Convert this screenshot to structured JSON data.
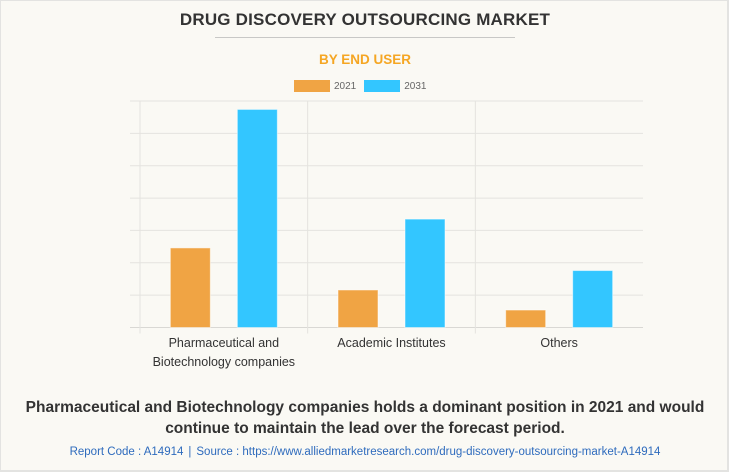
{
  "header": {
    "title": "DRUG DISCOVERY OUTSOURCING MARKET",
    "subtitle": "BY END USER"
  },
  "colors": {
    "subtitle": "#f5a623",
    "series_2021": "#f0a444",
    "series_2031": "#33c6ff",
    "gridline": "#e4e3df",
    "source_link": "#2e6bbd"
  },
  "chart_data": {
    "type": "bar",
    "title": "DRUG DISCOVERY OUTSOURCING MARKET",
    "subtitle": "BY END USER",
    "categories": [
      "Pharmaceutical and Biotechnology companies",
      "Academic Institutes",
      "Others"
    ],
    "category_lines": [
      [
        "Pharmaceutical and",
        "Biotechnology companies"
      ],
      [
        "Academic Institutes"
      ],
      [
        "Others"
      ]
    ],
    "series": [
      {
        "name": "2021",
        "color": "#f0a444",
        "values": [
          2.46,
          1.16,
          0.54
        ]
      },
      {
        "name": "2031",
        "color": "#33c6ff",
        "values": [
          6.74,
          3.35,
          1.76
        ]
      }
    ],
    "value_units": "relative (gridline intervals; y-axis values not shown)",
    "ylim": [
      0,
      7
    ],
    "gridlines": 7,
    "grid": true,
    "y_tick_labels_shown": false,
    "xlabel": "",
    "ylabel": "",
    "legend": {
      "position": "top-center",
      "entries": [
        "2021",
        "2031"
      ]
    }
  },
  "footer": {
    "summary": "Pharmaceutical and Biotechnology companies holds a dominant position in 2021 and would continue to maintain the lead over the forecast period.",
    "report_code": "Report Code : A14914",
    "separator": "|",
    "source": "Source : https://www.alliedmarketresearch.com/drug-discovery-outsourcing-market-A14914"
  }
}
